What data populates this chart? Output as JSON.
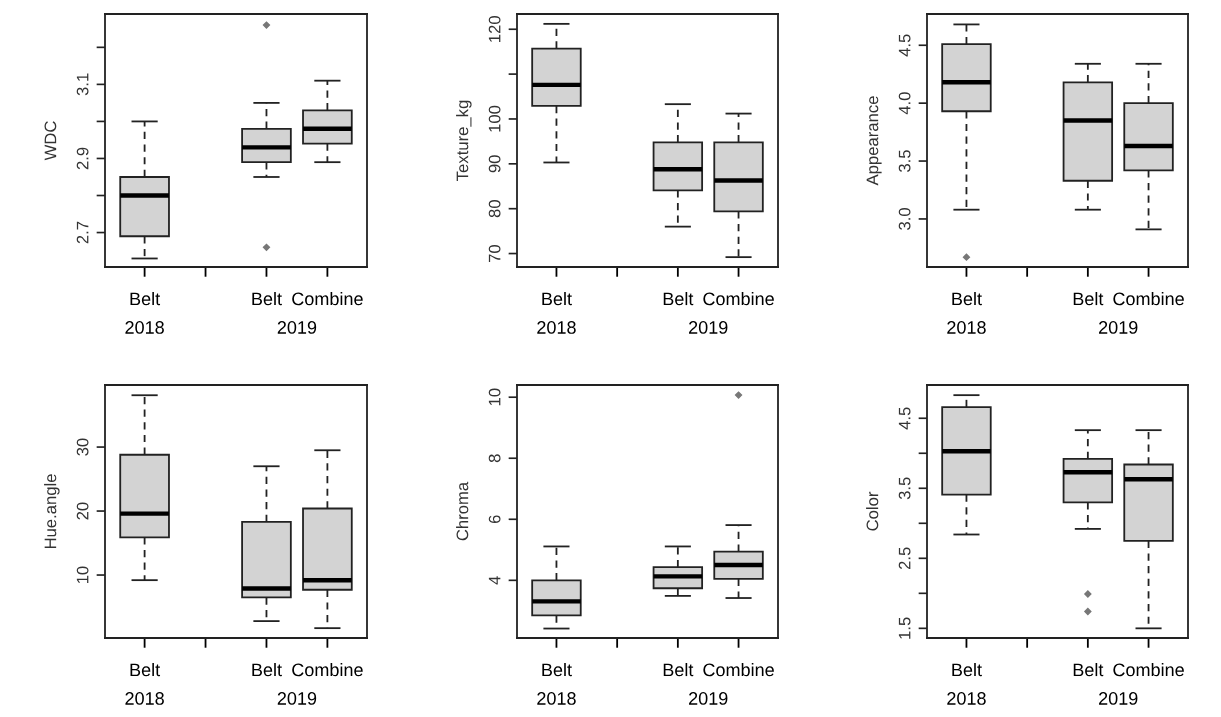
{
  "chart_data": [
    {
      "type": "box",
      "ylabel": "WDC",
      "categories": [
        "Belt",
        null,
        "Belt",
        "Combine"
      ],
      "annotations": [
        "2018",
        "2019"
      ],
      "color": "#d3d3d3",
      "ylim": [
        2.607,
        3.29
      ],
      "yticks": [
        2.7,
        {
          "value": 2.8,
          "label": null
        },
        2.9,
        {
          "value": 3.0,
          "label": null
        },
        3.1,
        {
          "value": 3.2,
          "label": null
        }
      ],
      "boxes": [
        {
          "low": 2.63,
          "q1": 2.69,
          "median": 2.8,
          "q3": 2.85,
          "high": 3.0
        },
        null,
        {
          "low": 2.85,
          "q1": 2.89,
          "median": 2.93,
          "q3": 2.98,
          "high": 3.05,
          "outliers": [
            3.26,
            2.66
          ]
        },
        {
          "low": 2.89,
          "q1": 2.94,
          "median": 2.98,
          "q3": 3.03,
          "high": 3.11
        }
      ]
    },
    {
      "type": "box",
      "ylabel": "Texture_kg",
      "categories": [
        "Belt",
        null,
        "Belt",
        "Combine"
      ],
      "annotations": [
        "2018",
        "2019"
      ],
      "color": "#d3d3d3",
      "ylim": [
        67.0,
        123.4
      ],
      "yticks": [
        70,
        80,
        90,
        100,
        {
          "value": 110,
          "label": null
        },
        120
      ],
      "boxes": [
        {
          "low": 90.3,
          "q1": 102.9,
          "median": 107.6,
          "q3": 115.7,
          "high": 121.2
        },
        null,
        {
          "low": 76.0,
          "q1": 84.1,
          "median": 88.8,
          "q3": 94.8,
          "high": 103.3
        },
        {
          "low": 69.2,
          "q1": 79.4,
          "median": 86.3,
          "q3": 94.8,
          "high": 101.2
        }
      ]
    },
    {
      "type": "box",
      "ylabel": "Appearance",
      "categories": [
        "Belt",
        null,
        "Belt",
        "Combine"
      ],
      "annotations": [
        "2018",
        "2019"
      ],
      "color": "#d3d3d3",
      "ylim": [
        2.585,
        4.77
      ],
      "yticks": [
        {
          "value": 3.0,
          "label": "3.0"
        },
        3.5,
        {
          "value": 4.0,
          "label": "4.0"
        },
        4.5
      ],
      "boxes": [
        {
          "low": 3.08,
          "q1": 3.93,
          "median": 4.18,
          "q3": 4.51,
          "high": 4.68,
          "outliers": [
            2.67
          ]
        },
        null,
        {
          "low": 3.08,
          "q1": 3.33,
          "median": 3.85,
          "q3": 4.18,
          "high": 4.34
        },
        {
          "low": 2.91,
          "q1": 3.42,
          "median": 3.63,
          "q3": 4.0,
          "high": 4.34
        }
      ]
    },
    {
      "type": "box",
      "ylabel": "Hue.angle",
      "categories": [
        "Belt",
        null,
        "Belt",
        "Combine"
      ],
      "annotations": [
        "2018",
        "2019"
      ],
      "color": "#d3d3d3",
      "ylim": [
        0.16,
        39.7
      ],
      "yticks": [
        10,
        20,
        30
      ],
      "boxes": [
        {
          "low": 9.2,
          "q1": 15.9,
          "median": 19.6,
          "q3": 28.8,
          "high": 38.1
        },
        null,
        {
          "low": 2.8,
          "q1": 6.5,
          "median": 7.9,
          "q3": 18.3,
          "high": 27.0
        },
        {
          "low": 1.7,
          "q1": 7.7,
          "median": 9.2,
          "q3": 20.4,
          "high": 29.5
        }
      ]
    },
    {
      "type": "box",
      "ylabel": "Chroma",
      "categories": [
        "Belt",
        null,
        "Belt",
        "Combine"
      ],
      "annotations": [
        "2018",
        "2019"
      ],
      "color": "#d3d3d3",
      "ylim": [
        2.11,
        10.4
      ],
      "yticks": [
        4,
        6,
        8,
        10
      ],
      "boxes": [
        {
          "low": 2.42,
          "q1": 2.85,
          "median": 3.31,
          "q3": 4.0,
          "high": 5.11
        },
        null,
        {
          "low": 3.49,
          "q1": 3.74,
          "median": 4.13,
          "q3": 4.43,
          "high": 5.11
        },
        {
          "low": 3.42,
          "q1": 4.05,
          "median": 4.5,
          "q3": 4.94,
          "high": 5.81,
          "outliers": [
            10.07
          ]
        }
      ]
    },
    {
      "type": "box",
      "ylabel": "Color",
      "categories": [
        "Belt",
        null,
        "Belt",
        "Combine"
      ],
      "annotations": [
        "2018",
        "2019"
      ],
      "color": "#d3d3d3",
      "ylim": [
        1.362,
        4.975
      ],
      "yticks": [
        1.5,
        {
          "value": 2.0,
          "label": null
        },
        2.5,
        {
          "value": 3.0,
          "label": null
        },
        3.5,
        {
          "value": 4.0,
          "label": null
        },
        4.5
      ],
      "boxes": [
        {
          "low": 2.84,
          "q1": 3.41,
          "median": 4.03,
          "q3": 4.66,
          "high": 4.83
        },
        null,
        {
          "low": 2.92,
          "q1": 3.3,
          "median": 3.73,
          "q3": 3.92,
          "high": 4.33,
          "outliers": [
            1.99,
            1.74
          ]
        },
        {
          "low": 1.5,
          "q1": 2.75,
          "median": 3.63,
          "q3": 3.84,
          "high": 4.33
        }
      ]
    }
  ]
}
